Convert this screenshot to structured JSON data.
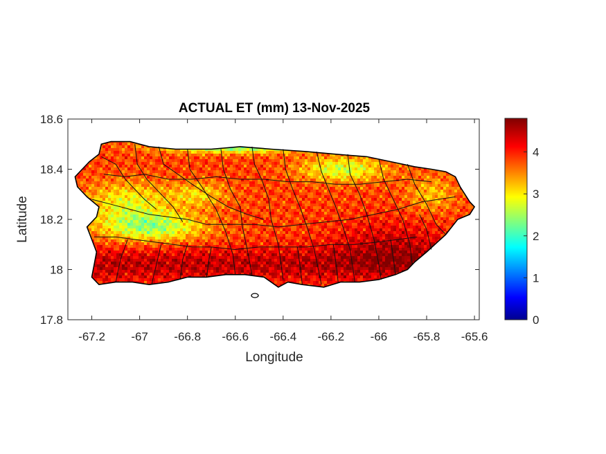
{
  "figure": {
    "title": "ACTUAL ET (mm) 13-Nov-2025",
    "xlabel": "Longitude",
    "ylabel": "Latitude"
  },
  "axes": {
    "xlim": [
      -67.3,
      -65.58
    ],
    "ylim": [
      17.8,
      18.6
    ],
    "x_ticks": [
      {
        "value": -67.2,
        "label": "-67.2"
      },
      {
        "value": -67.0,
        "label": "-67"
      },
      {
        "value": -66.8,
        "label": "-66.8"
      },
      {
        "value": -66.6,
        "label": "-66.6"
      },
      {
        "value": -66.4,
        "label": "-66.4"
      },
      {
        "value": -66.2,
        "label": "-66.2"
      },
      {
        "value": -66.0,
        "label": "-66"
      },
      {
        "value": -65.8,
        "label": "-65.8"
      },
      {
        "value": -65.6,
        "label": "-65.6"
      }
    ],
    "y_ticks": [
      {
        "value": 17.8,
        "label": "17.8"
      },
      {
        "value": 18.0,
        "label": "18"
      },
      {
        "value": 18.2,
        "label": "18.2"
      },
      {
        "value": 18.4,
        "label": "18.4"
      },
      {
        "value": 18.6,
        "label": "18.6"
      }
    ]
  },
  "colorbar": {
    "colormap": "jet",
    "range": [
      0,
      4.8
    ],
    "ticks": [
      {
        "value": 0,
        "label": "0"
      },
      {
        "value": 1,
        "label": "1"
      },
      {
        "value": 2,
        "label": "2"
      },
      {
        "value": 3,
        "label": "3"
      },
      {
        "value": 4,
        "label": "4"
      }
    ]
  },
  "map": {
    "region_outline": [
      [
        -67.27,
        18.37
      ],
      [
        -67.24,
        18.4
      ],
      [
        -67.21,
        18.43
      ],
      [
        -67.17,
        18.46
      ],
      [
        -67.16,
        18.5
      ],
      [
        -67.12,
        18.51
      ],
      [
        -67.04,
        18.51
      ],
      [
        -66.96,
        18.49
      ],
      [
        -66.85,
        18.48
      ],
      [
        -66.7,
        18.48
      ],
      [
        -66.58,
        18.49
      ],
      [
        -66.45,
        18.48
      ],
      [
        -66.3,
        18.47
      ],
      [
        -66.18,
        18.46
      ],
      [
        -66.05,
        18.45
      ],
      [
        -65.95,
        18.43
      ],
      [
        -65.85,
        18.41
      ],
      [
        -65.78,
        18.4
      ],
      [
        -65.72,
        18.39
      ],
      [
        -65.68,
        18.37
      ],
      [
        -65.66,
        18.33
      ],
      [
        -65.62,
        18.27
      ],
      [
        -65.6,
        18.25
      ],
      [
        -65.62,
        18.22
      ],
      [
        -65.67,
        18.2
      ],
      [
        -65.72,
        18.14
      ],
      [
        -65.8,
        18.07
      ],
      [
        -65.85,
        18.03
      ],
      [
        -65.88,
        18.0
      ],
      [
        -65.93,
        17.98
      ],
      [
        -66.0,
        17.96
      ],
      [
        -66.08,
        17.95
      ],
      [
        -66.16,
        17.95
      ],
      [
        -66.23,
        17.93
      ],
      [
        -66.32,
        17.94
      ],
      [
        -66.38,
        17.95
      ],
      [
        -66.42,
        17.93
      ],
      [
        -66.48,
        17.97
      ],
      [
        -66.56,
        17.98
      ],
      [
        -66.64,
        17.98
      ],
      [
        -66.72,
        17.97
      ],
      [
        -66.8,
        17.97
      ],
      [
        -66.88,
        17.95
      ],
      [
        -66.96,
        17.94
      ],
      [
        -67.03,
        17.95
      ],
      [
        -67.1,
        17.95
      ],
      [
        -67.17,
        17.94
      ],
      [
        -67.2,
        17.97
      ],
      [
        -67.19,
        18.02
      ],
      [
        -67.18,
        18.07
      ],
      [
        -67.2,
        18.12
      ],
      [
        -67.22,
        18.17
      ],
      [
        -67.18,
        18.21
      ],
      [
        -67.17,
        18.25
      ],
      [
        -67.22,
        18.29
      ],
      [
        -67.26,
        18.33
      ],
      [
        -67.27,
        18.37
      ]
    ],
    "municipal_boundaries": [
      [
        [
          -67.16,
          18.45
        ],
        [
          -67.1,
          18.42
        ],
        [
          -67.06,
          18.36
        ],
        [
          -67.02,
          18.32
        ],
        [
          -66.98,
          18.28
        ],
        [
          -66.93,
          18.24
        ]
      ],
      [
        [
          -67.02,
          18.5
        ],
        [
          -67.01,
          18.42
        ],
        [
          -66.97,
          18.36
        ],
        [
          -66.91,
          18.3
        ],
        [
          -66.86,
          18.25
        ],
        [
          -66.82,
          18.19
        ]
      ],
      [
        [
          -66.92,
          18.49
        ],
        [
          -66.9,
          18.42
        ],
        [
          -66.84,
          18.38
        ],
        [
          -66.78,
          18.34
        ],
        [
          -66.7,
          18.29
        ],
        [
          -66.63,
          18.25
        ],
        [
          -66.55,
          18.22
        ],
        [
          -66.48,
          18.2
        ]
      ],
      [
        [
          -66.8,
          18.48
        ],
        [
          -66.79,
          18.4
        ],
        [
          -66.74,
          18.33
        ],
        [
          -66.68,
          18.24
        ],
        [
          -66.64,
          18.15
        ],
        [
          -66.61,
          18.06
        ],
        [
          -66.6,
          17.98
        ]
      ],
      [
        [
          -66.66,
          18.48
        ],
        [
          -66.65,
          18.4
        ],
        [
          -66.62,
          18.32
        ],
        [
          -66.58,
          18.25
        ],
        [
          -66.57,
          18.17
        ],
        [
          -66.55,
          18.08
        ],
        [
          -66.53,
          17.98
        ]
      ],
      [
        [
          -66.53,
          18.49
        ],
        [
          -66.52,
          18.42
        ],
        [
          -66.49,
          18.36
        ],
        [
          -66.46,
          18.28
        ],
        [
          -66.45,
          18.2
        ],
        [
          -66.42,
          18.1
        ],
        [
          -66.4,
          17.96
        ]
      ],
      [
        [
          -66.4,
          18.48
        ],
        [
          -66.39,
          18.4
        ],
        [
          -66.36,
          18.32
        ],
        [
          -66.33,
          18.25
        ],
        [
          -66.3,
          18.17
        ],
        [
          -66.27,
          18.08
        ],
        [
          -66.24,
          17.94
        ]
      ],
      [
        [
          -66.26,
          18.47
        ],
        [
          -66.24,
          18.39
        ],
        [
          -66.21,
          18.32
        ],
        [
          -66.18,
          18.25
        ],
        [
          -66.15,
          18.17
        ],
        [
          -66.12,
          18.08
        ],
        [
          -66.1,
          17.95
        ]
      ],
      [
        [
          -66.13,
          18.46
        ],
        [
          -66.12,
          18.38
        ],
        [
          -66.08,
          18.3
        ],
        [
          -66.05,
          18.22
        ],
        [
          -66.02,
          18.12
        ],
        [
          -66.0,
          18.02
        ],
        [
          -65.99,
          17.96
        ]
      ],
      [
        [
          -66.0,
          18.44
        ],
        [
          -65.98,
          18.36
        ],
        [
          -65.94,
          18.28
        ],
        [
          -65.9,
          18.2
        ],
        [
          -65.87,
          18.1
        ],
        [
          -65.86,
          18.02
        ]
      ],
      [
        [
          -65.88,
          18.42
        ],
        [
          -65.85,
          18.34
        ],
        [
          -65.8,
          18.26
        ],
        [
          -65.76,
          18.18
        ],
        [
          -65.72,
          18.14
        ]
      ],
      [
        [
          -67.2,
          18.28
        ],
        [
          -67.12,
          18.26
        ],
        [
          -67.04,
          18.24
        ],
        [
          -66.96,
          18.22
        ],
        [
          -66.88,
          18.21
        ],
        [
          -66.8,
          18.2
        ],
        [
          -66.72,
          18.18
        ],
        [
          -66.62,
          18.18
        ],
        [
          -66.52,
          18.18
        ],
        [
          -66.42,
          18.17
        ],
        [
          -66.32,
          18.18
        ],
        [
          -66.22,
          18.19
        ],
        [
          -66.12,
          18.2
        ],
        [
          -66.02,
          18.22
        ],
        [
          -65.92,
          18.24
        ],
        [
          -65.82,
          18.27
        ],
        [
          -65.68,
          18.29
        ]
      ],
      [
        [
          -67.19,
          18.13
        ],
        [
          -67.1,
          18.13
        ],
        [
          -67.02,
          18.12
        ],
        [
          -66.94,
          18.11
        ],
        [
          -66.86,
          18.1
        ],
        [
          -66.78,
          18.09
        ],
        [
          -66.7,
          18.09
        ],
        [
          -66.6,
          18.08
        ],
        [
          -66.5,
          18.09
        ],
        [
          -66.4,
          18.09
        ],
        [
          -66.3,
          18.09
        ],
        [
          -66.2,
          18.1
        ],
        [
          -66.1,
          18.1
        ],
        [
          -66.0,
          18.11
        ],
        [
          -65.92,
          18.12
        ],
        [
          -65.84,
          18.13
        ]
      ],
      [
        [
          -67.15,
          18.38
        ],
        [
          -67.06,
          18.37
        ],
        [
          -66.98,
          18.38
        ],
        [
          -66.88,
          18.36
        ],
        [
          -66.78,
          18.36
        ],
        [
          -66.68,
          18.37
        ],
        [
          -66.58,
          18.36
        ],
        [
          -66.48,
          18.36
        ],
        [
          -66.38,
          18.35
        ],
        [
          -66.28,
          18.35
        ],
        [
          -66.18,
          18.34
        ],
        [
          -66.08,
          18.34
        ],
        [
          -65.98,
          18.35
        ],
        [
          -65.88,
          18.36
        ],
        [
          -65.78,
          18.35
        ]
      ],
      [
        [
          -67.1,
          17.95
        ],
        [
          -67.08,
          18.04
        ],
        [
          -67.05,
          18.12
        ]
      ],
      [
        [
          -66.95,
          17.94
        ],
        [
          -66.93,
          18.02
        ],
        [
          -66.91,
          18.1
        ]
      ],
      [
        [
          -66.83,
          17.96
        ],
        [
          -66.82,
          18.04
        ],
        [
          -66.8,
          18.1
        ]
      ],
      [
        [
          -66.72,
          17.97
        ],
        [
          -66.71,
          18.04
        ],
        [
          -66.7,
          18.09
        ]
      ],
      [
        [
          -66.32,
          17.94
        ],
        [
          -66.33,
          18.02
        ],
        [
          -66.34,
          18.09
        ]
      ],
      [
        [
          -66.17,
          17.95
        ],
        [
          -66.18,
          18.03
        ],
        [
          -66.19,
          18.1
        ]
      ],
      [
        [
          -65.93,
          17.98
        ],
        [
          -65.94,
          18.05
        ],
        [
          -65.95,
          18.12
        ]
      ],
      [
        [
          -65.78,
          18.08
        ],
        [
          -65.8,
          18.16
        ],
        [
          -65.83,
          18.22
        ]
      ]
    ]
  }
}
